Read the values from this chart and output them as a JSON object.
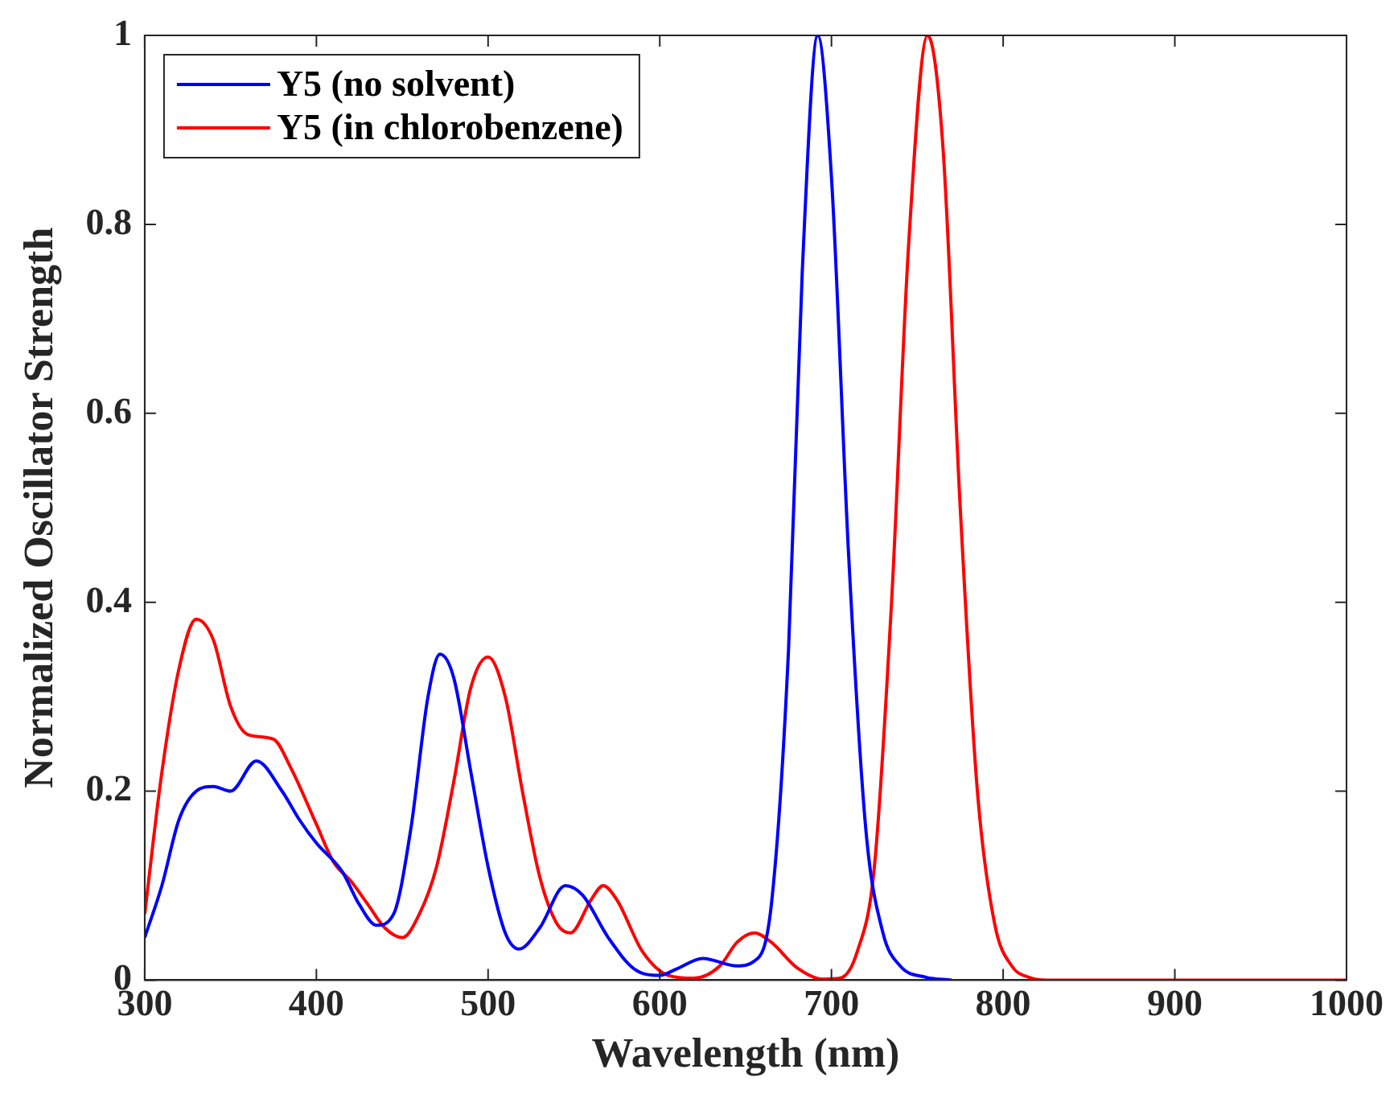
{
  "chart_data": {
    "type": "line",
    "xlabel": "Wavelength (nm)",
    "ylabel": "Normalized Oscillator Strength",
    "xlim": [
      300,
      1000
    ],
    "ylim": [
      0,
      1
    ],
    "xticks": [
      300,
      400,
      500,
      600,
      700,
      800,
      900,
      1000
    ],
    "yticks": [
      0,
      0.2,
      0.4,
      0.6,
      0.8,
      1
    ],
    "grid": false,
    "legend": "top left",
    "marker": "none",
    "line_style": "solid",
    "series": [
      {
        "name": "Y5 (no solvent)",
        "color": "#0000ff",
        "x": [
          300,
          310,
          320,
          330,
          340,
          350,
          365,
          380,
          390,
          400,
          415,
          425,
          435,
          445,
          455,
          465,
          472,
          480,
          490,
          500,
          510,
          518,
          530,
          545,
          555,
          570,
          585,
          600,
          610,
          625,
          645,
          655,
          665,
          675,
          683,
          692,
          700,
          710,
          720,
          730,
          740,
          755,
          770
        ],
        "values": [
          0.045,
          0.1,
          0.17,
          0.2,
          0.205,
          0.2,
          0.232,
          0.2,
          0.17,
          0.145,
          0.115,
          0.08,
          0.058,
          0.07,
          0.16,
          0.3,
          0.345,
          0.32,
          0.22,
          0.12,
          0.05,
          0.033,
          0.055,
          0.1,
          0.09,
          0.045,
          0.012,
          0.005,
          0.012,
          0.023,
          0.015,
          0.02,
          0.08,
          0.35,
          0.75,
          1.0,
          0.85,
          0.45,
          0.16,
          0.05,
          0.015,
          0.003,
          0
        ]
      },
      {
        "name": "Y5 (in chlorobenzene)",
        "color": "#ff0000",
        "x": [
          300,
          310,
          320,
          330,
          340,
          350,
          360,
          375,
          385,
          400,
          410,
          420,
          430,
          440,
          450,
          460,
          470,
          480,
          490,
          500,
          510,
          520,
          530,
          540,
          548,
          560,
          567,
          575,
          590,
          605,
          620,
          635,
          645,
          655,
          665,
          680,
          695,
          705,
          715,
          725,
          735,
          745,
          756,
          765,
          775,
          785,
          795,
          805,
          815,
          825,
          1000
        ],
        "values": [
          0.07,
          0.22,
          0.33,
          0.382,
          0.36,
          0.29,
          0.26,
          0.255,
          0.225,
          0.165,
          0.125,
          0.105,
          0.08,
          0.055,
          0.045,
          0.07,
          0.12,
          0.21,
          0.31,
          0.342,
          0.3,
          0.2,
          0.11,
          0.06,
          0.05,
          0.085,
          0.1,
          0.085,
          0.03,
          0.005,
          0.002,
          0.015,
          0.04,
          0.05,
          0.04,
          0.013,
          0.001,
          0.002,
          0.03,
          0.12,
          0.4,
          0.78,
          1.0,
          0.88,
          0.5,
          0.2,
          0.06,
          0.015,
          0.003,
          0,
          0
        ]
      }
    ]
  }
}
